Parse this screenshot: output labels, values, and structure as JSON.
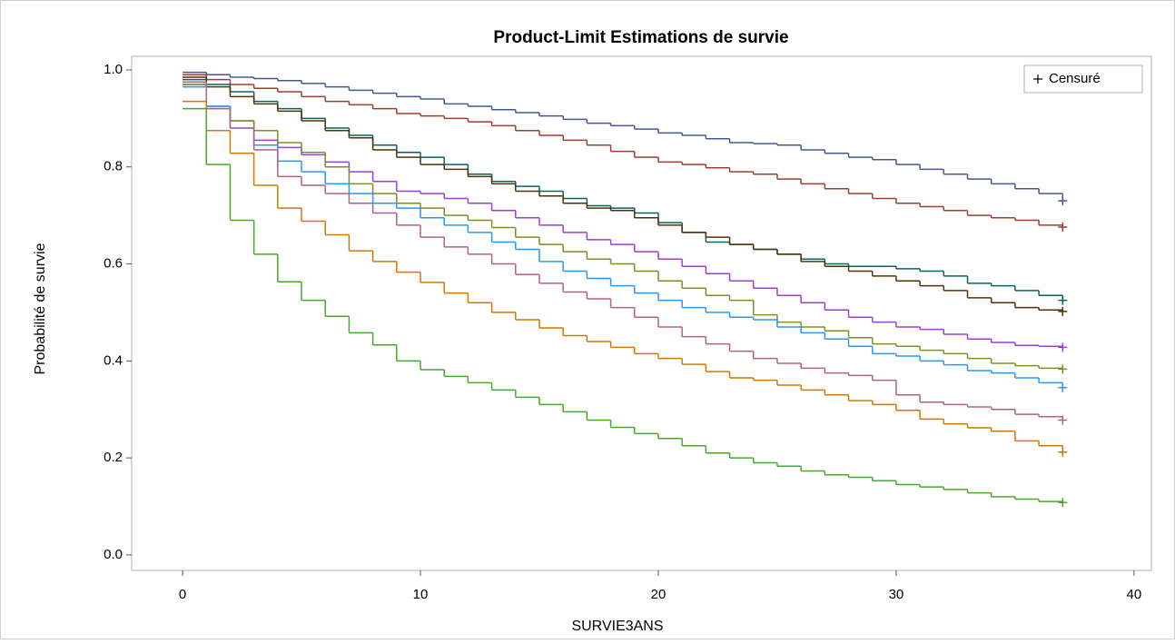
{
  "chart_data": {
    "type": "step",
    "title": "Product-Limit Estimations de survie",
    "xlabel": "SURVIE3ANS",
    "ylabel": "Probabilité de survie",
    "legend_label": "Censuré",
    "legend_position": "top-right",
    "grid": false,
    "xlim": [
      -2.14,
      40.73
    ],
    "ylim": [
      -0.032,
      1.028
    ],
    "xticks": [
      0,
      10,
      20,
      30,
      40
    ],
    "yticks": [
      {
        "value": 0,
        "label": "0.0"
      },
      0.2,
      0.4,
      0.6,
      0.8,
      {
        "value": 1,
        "label": "1.0"
      }
    ],
    "x": [
      0,
      1,
      2,
      3,
      4,
      5,
      6,
      7,
      8,
      9,
      10,
      11,
      12,
      13,
      14,
      15,
      16,
      17,
      18,
      19,
      20,
      21,
      22,
      23,
      24,
      25,
      26,
      27,
      28,
      29,
      30,
      31,
      32,
      33,
      34,
      35,
      36,
      37
    ],
    "series": [
      {
        "color": "#445694",
        "censored": [
          37
        ],
        "values": [
          0.995,
          0.99,
          0.985,
          0.982,
          0.978,
          0.972,
          0.965,
          0.958,
          0.952,
          0.945,
          0.94,
          0.93,
          0.925,
          0.918,
          0.912,
          0.905,
          0.898,
          0.89,
          0.885,
          0.878,
          0.87,
          0.865,
          0.858,
          0.85,
          0.848,
          0.845,
          0.835,
          0.828,
          0.82,
          0.815,
          0.805,
          0.795,
          0.785,
          0.775,
          0.765,
          0.755,
          0.745,
          0.73
        ]
      },
      {
        "color": "#a23a2e",
        "censored": [
          37
        ],
        "values": [
          0.99,
          0.98,
          0.97,
          0.962,
          0.955,
          0.945,
          0.935,
          0.928,
          0.92,
          0.91,
          0.905,
          0.9,
          0.893,
          0.885,
          0.875,
          0.865,
          0.855,
          0.845,
          0.832,
          0.82,
          0.81,
          0.805,
          0.798,
          0.79,
          0.785,
          0.775,
          0.765,
          0.755,
          0.745,
          0.735,
          0.725,
          0.718,
          0.71,
          0.7,
          0.695,
          0.69,
          0.68,
          0.676
        ]
      },
      {
        "color": "#01665e",
        "censored": [
          37
        ],
        "values": [
          0.98,
          0.97,
          0.955,
          0.935,
          0.92,
          0.9,
          0.88,
          0.865,
          0.845,
          0.83,
          0.82,
          0.805,
          0.785,
          0.77,
          0.76,
          0.75,
          0.735,
          0.72,
          0.715,
          0.705,
          0.685,
          0.665,
          0.645,
          0.64,
          0.63,
          0.62,
          0.61,
          0.6,
          0.595,
          0.595,
          0.59,
          0.585,
          0.575,
          0.56,
          0.555,
          0.545,
          0.535,
          0.525
        ]
      },
      {
        "color": "#543005",
        "censored": [
          37
        ],
        "values": [
          0.985,
          0.965,
          0.945,
          0.93,
          0.915,
          0.895,
          0.875,
          0.86,
          0.835,
          0.82,
          0.805,
          0.795,
          0.78,
          0.765,
          0.75,
          0.74,
          0.725,
          0.715,
          0.71,
          0.695,
          0.68,
          0.665,
          0.655,
          0.64,
          0.63,
          0.62,
          0.605,
          0.595,
          0.585,
          0.575,
          0.565,
          0.555,
          0.545,
          0.53,
          0.52,
          0.51,
          0.505,
          0.502
        ]
      },
      {
        "color": "#9d3cdb",
        "censored": [
          37
        ],
        "values": [
          0.97,
          0.925,
          0.895,
          0.855,
          0.84,
          0.825,
          0.81,
          0.79,
          0.77,
          0.75,
          0.745,
          0.735,
          0.725,
          0.71,
          0.695,
          0.68,
          0.665,
          0.65,
          0.64,
          0.625,
          0.61,
          0.595,
          0.58,
          0.565,
          0.55,
          0.535,
          0.52,
          0.505,
          0.49,
          0.48,
          0.47,
          0.465,
          0.455,
          0.445,
          0.438,
          0.432,
          0.43,
          0.428
        ]
      },
      {
        "color": "#7f8e1f",
        "censored": [
          37
        ],
        "values": [
          0.97,
          0.92,
          0.895,
          0.875,
          0.85,
          0.83,
          0.8,
          0.765,
          0.745,
          0.725,
          0.715,
          0.7,
          0.69,
          0.675,
          0.655,
          0.64,
          0.625,
          0.61,
          0.6,
          0.585,
          0.565,
          0.55,
          0.535,
          0.525,
          0.495,
          0.48,
          0.47,
          0.462,
          0.448,
          0.435,
          0.43,
          0.422,
          0.415,
          0.405,
          0.395,
          0.39,
          0.385,
          0.383
        ]
      },
      {
        "color": "#2597fa",
        "censored": [
          37
        ],
        "values": [
          0.965,
          0.925,
          0.88,
          0.845,
          0.812,
          0.79,
          0.765,
          0.745,
          0.725,
          0.715,
          0.695,
          0.68,
          0.665,
          0.645,
          0.63,
          0.605,
          0.585,
          0.57,
          0.555,
          0.54,
          0.525,
          0.51,
          0.5,
          0.49,
          0.485,
          0.47,
          0.458,
          0.445,
          0.43,
          0.415,
          0.41,
          0.4,
          0.392,
          0.38,
          0.375,
          0.365,
          0.355,
          0.345
        ]
      },
      {
        "color": "#b26084",
        "censored": [
          37
        ],
        "values": [
          0.975,
          0.92,
          0.88,
          0.835,
          0.78,
          0.762,
          0.745,
          0.725,
          0.705,
          0.68,
          0.655,
          0.635,
          0.62,
          0.6,
          0.578,
          0.56,
          0.542,
          0.528,
          0.51,
          0.49,
          0.47,
          0.45,
          0.435,
          0.42,
          0.405,
          0.395,
          0.385,
          0.375,
          0.37,
          0.36,
          0.33,
          0.315,
          0.31,
          0.305,
          0.3,
          0.29,
          0.285,
          0.278
        ]
      },
      {
        "color": "#d17800",
        "censored": [
          37
        ],
        "values": [
          0.935,
          0.875,
          0.828,
          0.762,
          0.715,
          0.688,
          0.66,
          0.627,
          0.605,
          0.583,
          0.562,
          0.54,
          0.52,
          0.5,
          0.485,
          0.468,
          0.452,
          0.44,
          0.428,
          0.415,
          0.405,
          0.393,
          0.378,
          0.365,
          0.36,
          0.35,
          0.34,
          0.33,
          0.318,
          0.31,
          0.298,
          0.28,
          0.27,
          0.262,
          0.255,
          0.235,
          0.225,
          0.212
        ]
      },
      {
        "color": "#47a82a",
        "censored": [
          37
        ],
        "values": [
          0.92,
          0.805,
          0.69,
          0.62,
          0.563,
          0.525,
          0.492,
          0.458,
          0.433,
          0.4,
          0.382,
          0.368,
          0.355,
          0.34,
          0.325,
          0.31,
          0.295,
          0.278,
          0.263,
          0.25,
          0.24,
          0.225,
          0.21,
          0.2,
          0.19,
          0.183,
          0.173,
          0.165,
          0.16,
          0.153,
          0.145,
          0.14,
          0.135,
          0.128,
          0.12,
          0.115,
          0.11,
          0.108
        ]
      }
    ]
  }
}
